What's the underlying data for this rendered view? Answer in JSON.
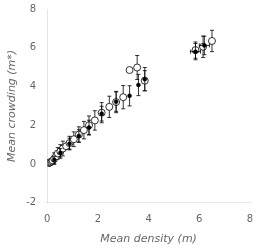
{
  "chart_data": {
    "type": "scatter",
    "xlabel": "Mean density (m)",
    "ylabel": "Mean crowding (m*)",
    "xlim": [
      0,
      8
    ],
    "ylim": [
      -2,
      8
    ],
    "xticks": [
      0,
      2,
      4,
      6,
      8
    ],
    "yticks": [
      -2,
      0,
      2,
      4,
      6,
      8
    ],
    "grid": false,
    "series": [
      {
        "marker": "open_circle",
        "color": "black",
        "x": [
          0.07,
          0.1,
          0.14,
          0.18,
          0.22,
          0.28,
          0.35,
          0.42,
          0.52,
          0.62,
          0.75,
          0.88,
          1.05,
          1.25,
          1.45,
          1.65,
          1.88,
          2.15,
          2.45,
          2.72,
          3.0,
          3.25,
          3.55,
          3.85,
          5.85,
          6.15,
          6.5
        ],
        "values": [
          0.05,
          0.08,
          0.1,
          0.14,
          0.18,
          0.28,
          0.4,
          0.55,
          0.65,
          0.8,
          0.92,
          1.08,
          1.28,
          1.52,
          1.75,
          2.0,
          2.25,
          2.65,
          2.95,
          3.2,
          3.45,
          4.85,
          4.98,
          4.3,
          5.88,
          6.05,
          6.35
        ],
        "yerr": [
          0.0,
          0.0,
          0.0,
          0.0,
          0.0,
          0.3,
          0.0,
          0.3,
          0.35,
          0.38,
          0.0,
          0.35,
          0.38,
          0.4,
          0.45,
          0.48,
          0.5,
          0.52,
          0.55,
          0.55,
          0.6,
          0.0,
          0.62,
          0.52,
          0.42,
          0.55,
          0.55
        ]
      },
      {
        "marker": "circle",
        "color": "black",
        "x": [
          0.28,
          0.52,
          0.88,
          1.25,
          1.65,
          2.15,
          2.72,
          3.25,
          3.6,
          3.85,
          5.85,
          6.2
        ],
        "values": [
          0.22,
          0.58,
          1.05,
          1.45,
          1.88,
          2.6,
          3.22,
          3.52,
          4.08,
          4.38,
          5.8,
          6.12
        ],
        "yerr": [
          0.18,
          0.22,
          0.28,
          0.32,
          0.38,
          0.38,
          0.5,
          0.52,
          0.55,
          0.6,
          0.42,
          0.48
        ],
        "xerr": [
          0.0,
          0.0,
          0.0,
          0.0,
          0.0,
          0.0,
          0.0,
          0.0,
          0.0,
          0.0,
          0.2,
          0.2
        ]
      }
    ]
  }
}
